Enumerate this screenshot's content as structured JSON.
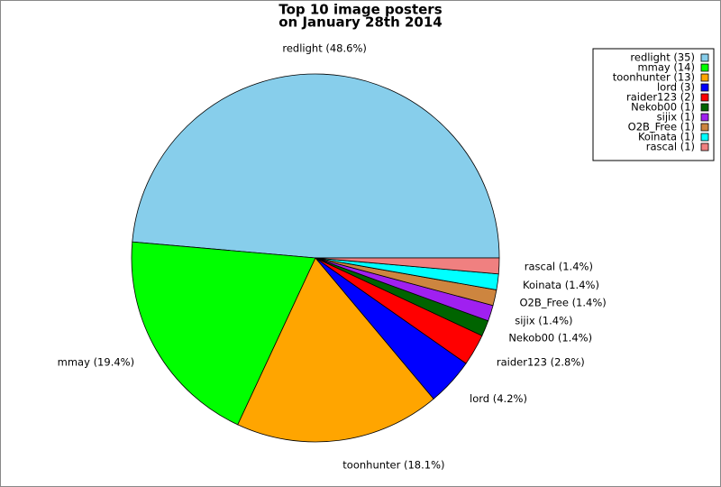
{
  "chart_data": {
    "type": "pie",
    "title": [
      "Top 10 image posters",
      "on January 28th 2014"
    ],
    "values": [
      35,
      14,
      13,
      3,
      2,
      1,
      1,
      1,
      1,
      1
    ],
    "value_labels": [
      "redlight (48.6%)",
      "mmay (19.4%)",
      "toonhunter (18.1%)",
      "lord (4.2%)",
      "raider123 (2.8%)",
      "Nekob00 (1.4%)",
      "sijix (1.4%)",
      "O2B_Free (1.4%)",
      "Koinata (1.4%)",
      "rascal (1.4%)"
    ],
    "legend_labels": [
      "redlight (35)",
      "mmay (14)",
      "toonhunter (13)",
      "lord (3)",
      "raider123 (2)",
      "Nekob00 (1)",
      "sijix (1)",
      "O2B_Free (1)",
      "Koinata (1)",
      "rascal (1)"
    ],
    "colors": [
      "#87ceeb",
      "#00ff00",
      "#ffa500",
      "#0000ff",
      "#ff0000",
      "#006400",
      "#a020f0",
      "#cd853f",
      "#00ffff",
      "#f08080"
    ],
    "legend": "upper right"
  }
}
